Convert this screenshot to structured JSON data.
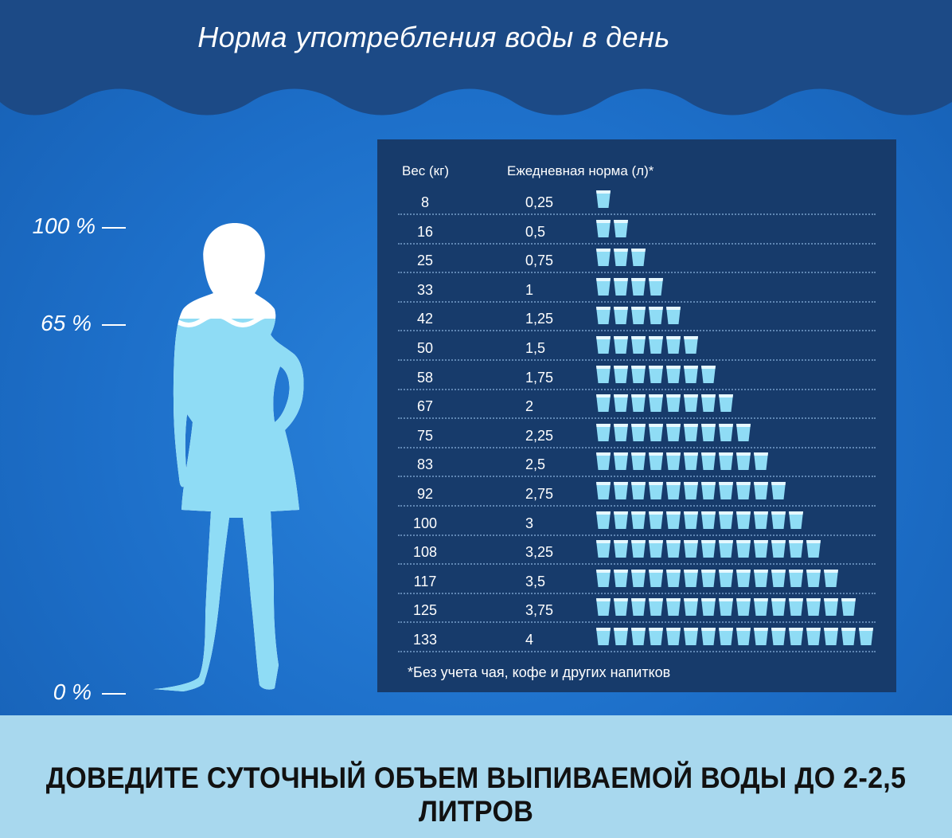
{
  "title": "Норма  употребления воды в день",
  "scale": [
    {
      "label": "100 %"
    },
    {
      "label": "65 %"
    },
    {
      "label": "0 %"
    }
  ],
  "table": {
    "col_weight": "Вес (кг)",
    "col_norm": "Ежедневная норма (л)*",
    "rows": [
      {
        "weight": "8",
        "norm": "0,25",
        "glasses": 1
      },
      {
        "weight": "16",
        "norm": "0,5",
        "glasses": 2
      },
      {
        "weight": "25",
        "norm": "0,75",
        "glasses": 3
      },
      {
        "weight": "33",
        "norm": "1",
        "glasses": 4
      },
      {
        "weight": "42",
        "norm": "1,25",
        "glasses": 5
      },
      {
        "weight": "50",
        "norm": "1,5",
        "glasses": 6
      },
      {
        "weight": "58",
        "norm": "1,75",
        "glasses": 7
      },
      {
        "weight": "67",
        "norm": "2",
        "glasses": 8
      },
      {
        "weight": "75",
        "norm": "2,25",
        "glasses": 9
      },
      {
        "weight": "83",
        "norm": "2,5",
        "glasses": 10
      },
      {
        "weight": "92",
        "norm": "2,75",
        "glasses": 11
      },
      {
        "weight": "100",
        "norm": "3",
        "glasses": 12
      },
      {
        "weight": "108",
        "norm": "3,25",
        "glasses": 13
      },
      {
        "weight": "117",
        "norm": "3,5",
        "glasses": 14
      },
      {
        "weight": "125",
        "norm": "3,75",
        "glasses": 15
      },
      {
        "weight": "133",
        "norm": "4",
        "glasses": 16
      }
    ],
    "footnote": "*Без учета чая, кофе и других напитков"
  },
  "banner": "ДОВЕДИТЕ СУТОЧНЫЙ ОБЪЕМ ВЫПИВАЕМОЙ ВОДЫ ДО 2-2,5 ЛИТРОВ",
  "icons": {
    "glass": "glass-icon",
    "figure": "woman-silhouette-icon"
  },
  "colors": {
    "top_band": "#1c4a86",
    "panel": "#173b6b",
    "water": "#8fdcf5",
    "bottom_band": "#a8d8ee"
  }
}
